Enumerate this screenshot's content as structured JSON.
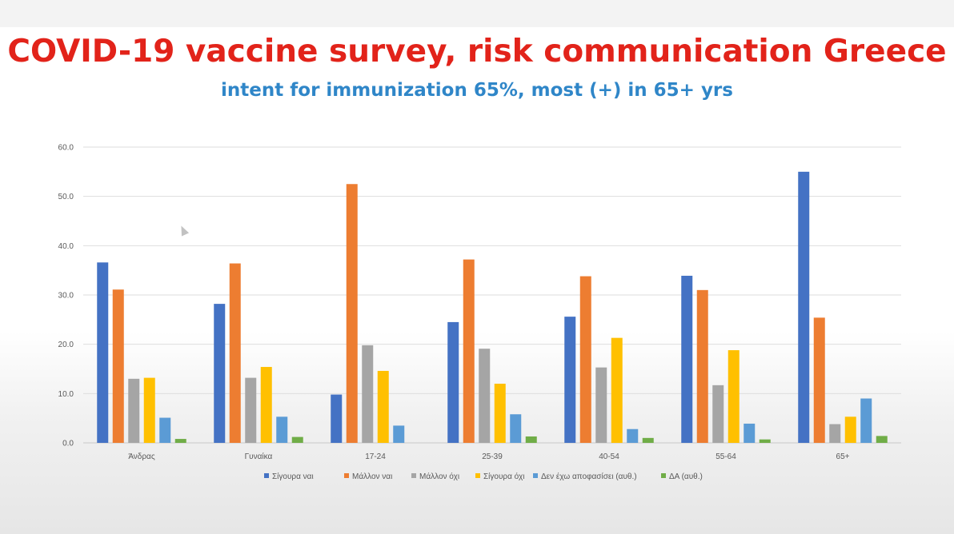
{
  "title": "COVID-19 vaccine survey, risk communication Greece",
  "subtitle": "intent for immunization 65%, most (+) in 65+ yrs",
  "chart_data": {
    "type": "bar",
    "ylim": [
      0,
      60
    ],
    "yticks": [
      "0.0",
      "10.0",
      "20.0",
      "30.0",
      "40.0",
      "50.0",
      "60.0"
    ],
    "ytick_values": [
      0,
      10,
      20,
      30,
      40,
      50,
      60
    ],
    "grid": true,
    "legend_position": "bottom",
    "categories": [
      "Άνδρας",
      "Γυναίκα",
      "17-24",
      "25-39",
      "40-54",
      "55-64",
      "65+"
    ],
    "series": [
      {
        "name": "Σίγουρα ναι",
        "color": "#4472c4",
        "values": [
          36.6,
          28.2,
          9.8,
          24.5,
          25.6,
          33.9,
          55.0
        ]
      },
      {
        "name": "Μάλλον ναι",
        "color": "#ed7d31",
        "values": [
          31.1,
          36.4,
          52.5,
          37.2,
          33.8,
          31.0,
          25.4
        ]
      },
      {
        "name": "Μάλλον όχι",
        "color": "#a5a5a5",
        "values": [
          13.0,
          13.2,
          19.8,
          19.1,
          15.3,
          11.7,
          3.8
        ]
      },
      {
        "name": "Σίγουρα όχι",
        "color": "#ffc000",
        "values": [
          13.2,
          15.4,
          14.6,
          12.0,
          21.3,
          18.8,
          5.3
        ]
      },
      {
        "name": "Δεν έχω αποφασίσει (αυθ.)",
        "color": "#5b9bd5",
        "values": [
          5.1,
          5.3,
          3.5,
          5.8,
          2.8,
          3.9,
          9.0
        ]
      },
      {
        "name": "ΔΑ (αυθ.)",
        "color": "#70ad47",
        "values": [
          0.8,
          1.2,
          0.0,
          1.3,
          1.0,
          0.7,
          1.4
        ]
      }
    ]
  }
}
